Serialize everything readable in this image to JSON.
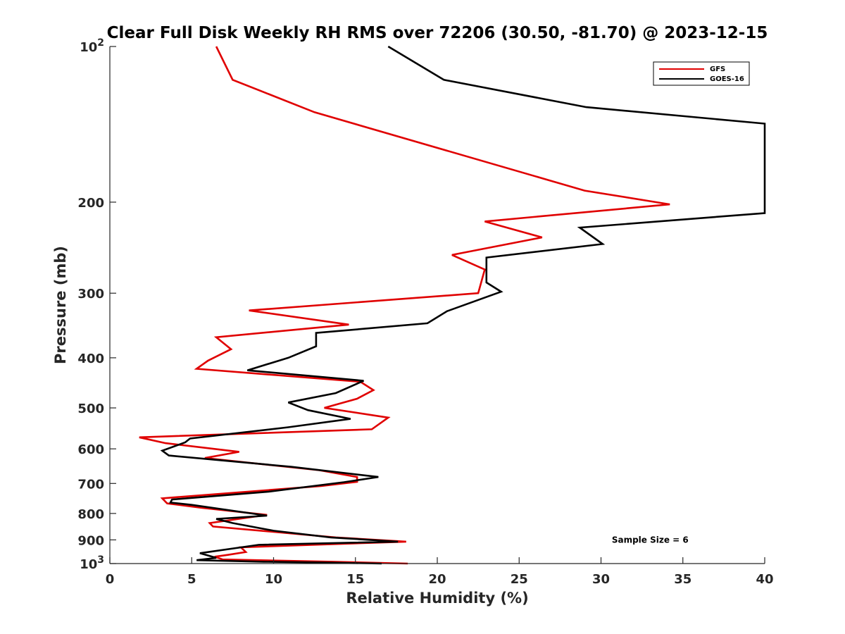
{
  "chart_data": {
    "type": "line",
    "title": "Clear Full Disk Weekly RH RMS over 72206 (30.50, -81.70) @ 2023-12-15",
    "xlabel": "Relative Humidity (%)",
    "ylabel": "Pressure (mb)",
    "xlim": [
      0,
      40
    ],
    "ylim": [
      1000,
      100
    ],
    "yscale": "log",
    "y_reversed": true,
    "grid": false,
    "legend_placement": "top-right",
    "x_ticks": [
      {
        "value": 0,
        "label": "0"
      },
      {
        "value": 5,
        "label": "5"
      },
      {
        "value": 10,
        "label": "10"
      },
      {
        "value": 15,
        "label": "15"
      },
      {
        "value": 20,
        "label": "20"
      },
      {
        "value": 25,
        "label": "25"
      },
      {
        "value": 30,
        "label": "30"
      },
      {
        "value": 35,
        "label": "35"
      },
      {
        "value": 40,
        "label": "40"
      }
    ],
    "y_ticks": [
      {
        "value": 100,
        "base": "10",
        "exp": "2"
      },
      {
        "value": 200,
        "label": "200"
      },
      {
        "value": 300,
        "label": "300"
      },
      {
        "value": 400,
        "label": "400"
      },
      {
        "value": 500,
        "label": "500"
      },
      {
        "value": 600,
        "label": "600"
      },
      {
        "value": 700,
        "label": "700"
      },
      {
        "value": 800,
        "label": "800"
      },
      {
        "value": 900,
        "label": "900"
      },
      {
        "value": 1000,
        "base": "10",
        "exp": "3"
      }
    ],
    "series": [
      {
        "name": "GFS",
        "color": "#e00000",
        "points": [
          [
            6.5,
            100
          ],
          [
            7.5,
            116
          ],
          [
            12.5,
            134
          ],
          [
            29.0,
            190
          ],
          [
            34.2,
            202
          ],
          [
            22.9,
            218
          ],
          [
            26.4,
            234
          ],
          [
            20.9,
            253
          ],
          [
            22.9,
            270
          ],
          [
            22.5,
            300
          ],
          [
            8.5,
            324
          ],
          [
            14.6,
            345
          ],
          [
            6.5,
            365
          ],
          [
            7.4,
            385
          ],
          [
            6.0,
            405
          ],
          [
            5.3,
            420
          ],
          [
            15.3,
            445
          ],
          [
            16.1,
            462
          ],
          [
            15.1,
            480
          ],
          [
            13.1,
            500
          ],
          [
            17.0,
            522
          ],
          [
            16.0,
            550
          ],
          [
            1.8,
            570
          ],
          [
            3.4,
            585
          ],
          [
            7.9,
            608
          ],
          [
            5.8,
            625
          ],
          [
            12.8,
            660
          ],
          [
            15.1,
            680
          ],
          [
            15.1,
            695
          ],
          [
            12.9,
            708
          ],
          [
            3.2,
            748
          ],
          [
            3.5,
            765
          ],
          [
            5.6,
            780
          ],
          [
            9.6,
            805
          ],
          [
            6.1,
            835
          ],
          [
            6.3,
            848
          ],
          [
            13.8,
            890
          ],
          [
            18.1,
            907
          ],
          [
            8.0,
            930
          ],
          [
            8.3,
            950
          ],
          [
            7.2,
            962
          ],
          [
            6.4,
            970
          ],
          [
            6.9,
            982
          ],
          [
            13.6,
            992
          ],
          [
            18.2,
            1000
          ]
        ]
      },
      {
        "name": "GOES-16",
        "color": "#000000",
        "points": [
          [
            17.0,
            100
          ],
          [
            20.4,
            116
          ],
          [
            29.1,
            131
          ],
          [
            40.0,
            141
          ],
          [
            40.0,
            210
          ],
          [
            28.7,
            224
          ],
          [
            30.1,
            241
          ],
          [
            23.0,
            256
          ],
          [
            23.0,
            280
          ],
          [
            23.0,
            286
          ],
          [
            23.9,
            298
          ],
          [
            20.6,
            325
          ],
          [
            19.4,
            343
          ],
          [
            12.6,
            358
          ],
          [
            12.6,
            380
          ],
          [
            10.9,
            400
          ],
          [
            8.4,
            423
          ],
          [
            15.5,
            443
          ],
          [
            13.8,
            468
          ],
          [
            10.9,
            488
          ],
          [
            12.1,
            505
          ],
          [
            14.7,
            525
          ],
          [
            10.9,
            545
          ],
          [
            4.9,
            573
          ],
          [
            4.6,
            583
          ],
          [
            3.2,
            605
          ],
          [
            3.6,
            618
          ],
          [
            11.1,
            650
          ],
          [
            16.4,
            680
          ],
          [
            14.3,
            696
          ],
          [
            9.7,
            726
          ],
          [
            3.8,
            752
          ],
          [
            3.7,
            762
          ],
          [
            5.0,
            770
          ],
          [
            9.6,
            808
          ],
          [
            6.5,
            820
          ],
          [
            7.5,
            835
          ],
          [
            10.0,
            864
          ],
          [
            13.5,
            890
          ],
          [
            17.6,
            907
          ],
          [
            9.1,
            920
          ],
          [
            5.5,
            955
          ],
          [
            6.5,
            975
          ],
          [
            5.3,
            985
          ],
          [
            9.4,
            992
          ],
          [
            12.8,
            995
          ],
          [
            16.6,
            1000
          ]
        ]
      }
    ],
    "annotations": [
      {
        "text": "Sample Size = 6",
        "x": 33,
        "y": 900
      }
    ]
  }
}
